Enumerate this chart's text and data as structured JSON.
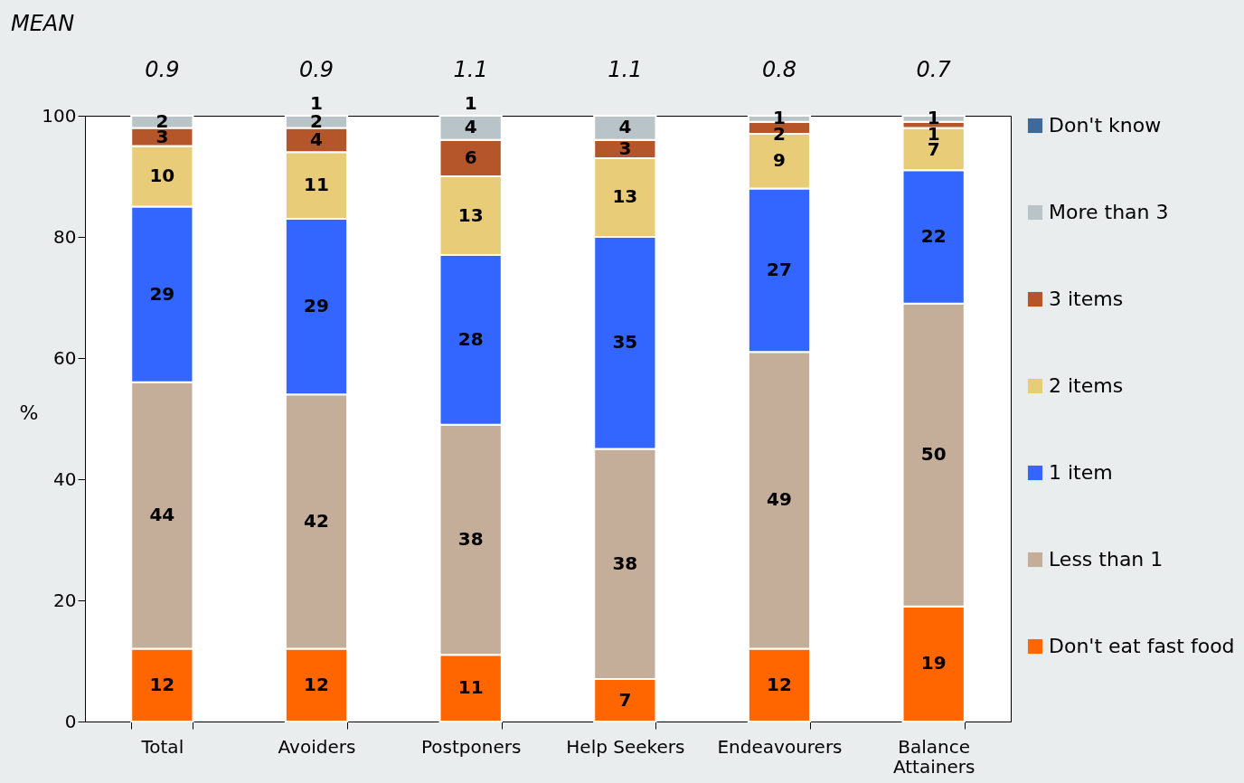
{
  "chart_data": {
    "type": "bar",
    "stacked": true,
    "ylabel": "%",
    "ylim": [
      0,
      100
    ],
    "yticks": [
      0,
      20,
      40,
      60,
      80,
      100
    ],
    "legend": "right",
    "data_labels": true,
    "categories": [
      "Total",
      "Avoiders",
      "Postponers",
      "Help Seekers",
      "Endeavourers",
      "Balance Attainers"
    ],
    "series": [
      {
        "name": "Don't eat fast food",
        "color": "#ff6600",
        "values": [
          12,
          12,
          11,
          7,
          12,
          19
        ]
      },
      {
        "name": "Less than 1",
        "color": "#c4ae99",
        "values": [
          44,
          42,
          38,
          38,
          49,
          50
        ]
      },
      {
        "name": "1 item",
        "color": "#3366ff",
        "values": [
          29,
          29,
          28,
          35,
          27,
          22
        ]
      },
      {
        "name": "2 items",
        "color": "#e8cc78",
        "values": [
          10,
          11,
          13,
          13,
          9,
          7
        ]
      },
      {
        "name": "3 items",
        "color": "#b5552a",
        "values": [
          3,
          4,
          6,
          3,
          2,
          1
        ]
      },
      {
        "name": "More than 3",
        "color": "#b8c4c8",
        "values": [
          2,
          2,
          4,
          4,
          1,
          1
        ]
      },
      {
        "name": "Don't know",
        "color": "#3d6a9a",
        "values": [
          null,
          null,
          null,
          null,
          null,
          null
        ]
      }
    ],
    "annotations": [
      "MEAN",
      "0.9",
      "0.9",
      "1.1",
      "1.1",
      "0.8",
      "0.7",
      {
        "text": "1",
        "x": "Avoiders",
        "y": 100
      },
      {
        "text": "1",
        "x": "Postponers",
        "y": 100
      }
    ]
  }
}
